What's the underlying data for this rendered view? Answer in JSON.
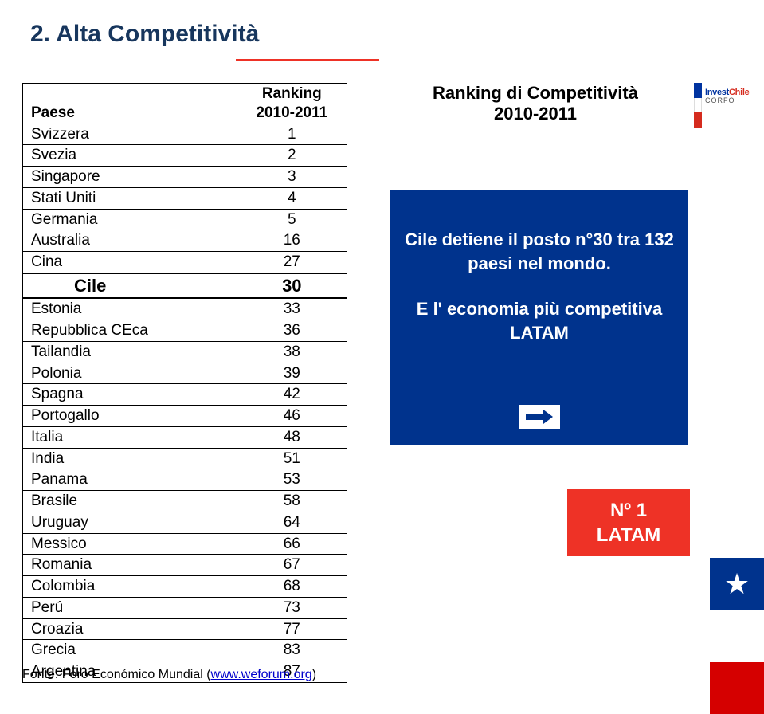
{
  "title": "2.  Alta Competitività",
  "table": {
    "header_country": "Paese",
    "header_rank_line1": "Ranking",
    "header_rank_line2": "2010-2011",
    "rows": [
      {
        "country": "Svizzera",
        "rank": "1",
        "hl": false
      },
      {
        "country": "Svezia",
        "rank": "2",
        "hl": false
      },
      {
        "country": "Singapore",
        "rank": "3",
        "hl": false
      },
      {
        "country": "Stati Uniti",
        "rank": "4",
        "hl": false
      },
      {
        "country": "Germania",
        "rank": "5",
        "hl": false
      },
      {
        "country": "Australia",
        "rank": "16",
        "hl": false
      },
      {
        "country": "Cina",
        "rank": "27",
        "hl": false
      },
      {
        "country": "Cile",
        "rank": "30",
        "hl": true
      },
      {
        "country": "Estonia",
        "rank": "33",
        "hl": false
      },
      {
        "country": "Repubblica CEca",
        "rank": "36",
        "hl": false
      },
      {
        "country": "Tailandia",
        "rank": "38",
        "hl": false
      },
      {
        "country": "Polonia",
        "rank": "39",
        "hl": false
      },
      {
        "country": "Spagna",
        "rank": "42",
        "hl": false
      },
      {
        "country": "Portogallo",
        "rank": "46",
        "hl": false
      },
      {
        "country": "Italia",
        "rank": "48",
        "hl": false
      },
      {
        "country": "India",
        "rank": "51",
        "hl": false
      },
      {
        "country": "Panama",
        "rank": "53",
        "hl": false
      },
      {
        "country": "Brasile",
        "rank": "58",
        "hl": false
      },
      {
        "country": "Uruguay",
        "rank": "64",
        "hl": false
      },
      {
        "country": "Messico",
        "rank": "66",
        "hl": false
      },
      {
        "country": "Romania",
        "rank": "67",
        "hl": false
      },
      {
        "country": "Colombia",
        "rank": "68",
        "hl": false
      },
      {
        "country": "Perú",
        "rank": "73",
        "hl": false
      },
      {
        "country": "Croazia",
        "rank": "77",
        "hl": false
      },
      {
        "country": "Grecia",
        "rank": "83",
        "hl": false
      },
      {
        "country": "Argentina",
        "rank": "87",
        "hl": false
      }
    ]
  },
  "source_prefix": "Fonte: Foro Económico Mundial (",
  "source_link": "www.weforum.org",
  "source_suffix": ")",
  "subtitle_line1": "Ranking di Competitività",
  "subtitle_line2": "2010-2011",
  "panel_p1": "Cile detiene il posto n°30 tra 132 paesi nel mondo.",
  "panel_p2": "E l' economia più competitiva  LATAM",
  "badge_line1": "Nº 1",
  "badge_line2": "LATAM",
  "logo_brand_a": "Invest",
  "logo_brand_b": "Chile",
  "logo_sub": "CORFO",
  "colors": {
    "title": "#17365d",
    "accent_red": "#ee3226",
    "panel_blue": "#00338d",
    "flag_blue": "#00338d",
    "flag_red": "#d50000",
    "link": "#0000cc"
  }
}
